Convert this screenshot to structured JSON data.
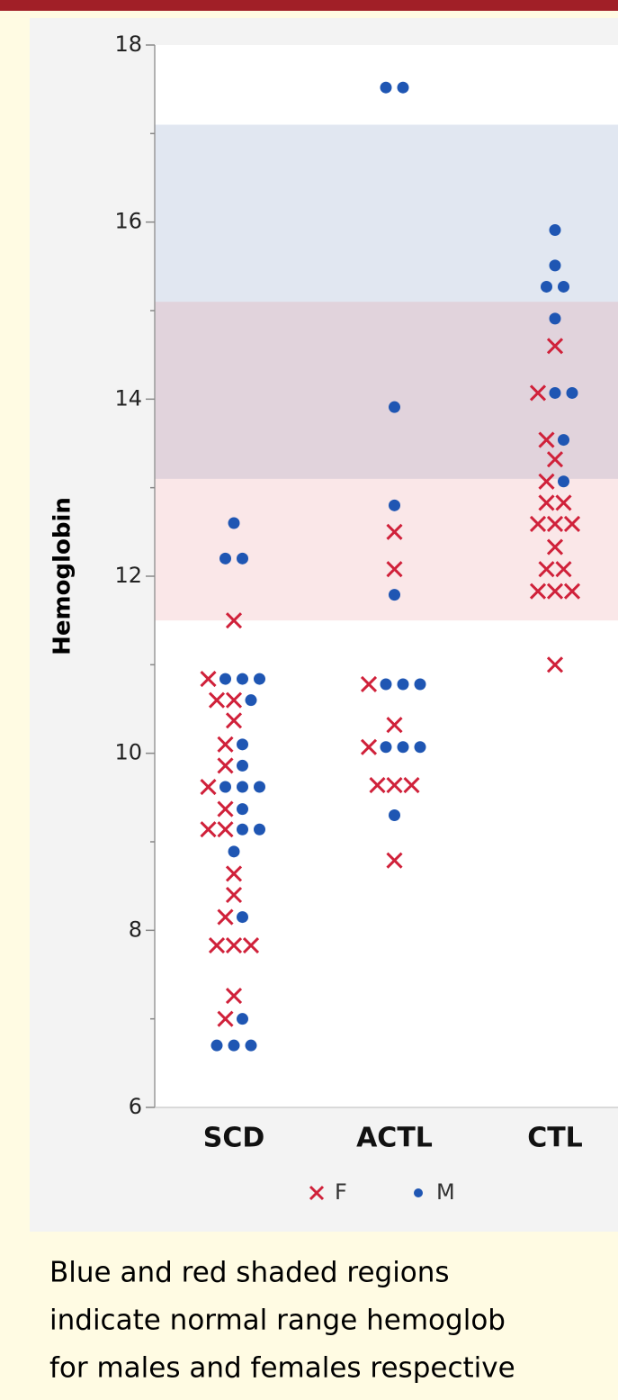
{
  "chart_data": {
    "type": "dotplot",
    "y_label": "Hemoglobin",
    "categories": [
      "SCD",
      "ACTL",
      "CTL"
    ],
    "ylim": [
      6,
      18
    ],
    "yticks": [
      6,
      8,
      10,
      12,
      14,
      16,
      18
    ],
    "yminorticks": [
      7,
      9,
      11,
      13,
      15,
      17
    ],
    "bands": [
      {
        "ylim": [
          13.1,
          17.1
        ],
        "color": "rgba(170,185,215,0.35)"
      },
      {
        "ylim": [
          11.5,
          15.1
        ],
        "color": "rgba(225,120,130,0.18)"
      }
    ],
    "series": [
      {
        "name": "F",
        "color": "#d0213a",
        "marker": "x",
        "x": [
          "SCD",
          "SCD",
          "SCD",
          "SCD",
          "SCD",
          "SCD",
          "SCD",
          "SCD",
          "SCD",
          "SCD",
          "SCD",
          "SCD",
          "SCD",
          "SCD",
          "SCD",
          "SCD",
          "SCD",
          "SCD",
          "SCD",
          "ACTL",
          "ACTL",
          "ACTL",
          "ACTL",
          "ACTL",
          "ACTL",
          "ACTL",
          "ACTL",
          "ACTL",
          "CTL",
          "CTL",
          "CTL",
          "CTL",
          "CTL",
          "CTL",
          "CTL",
          "CTL",
          "CTL",
          "CTL",
          "CTL",
          "CTL",
          "CTL",
          "CTL",
          "CTL",
          "CTL",
          "CTL"
        ],
        "values": [
          11.5,
          10.84,
          10.6,
          10.6,
          10.37,
          10.1,
          9.86,
          9.62,
          9.37,
          9.14,
          9.14,
          8.64,
          8.4,
          8.15,
          7.83,
          7.83,
          7.83,
          7.26,
          7.0,
          12.5,
          12.08,
          10.78,
          10.32,
          10.07,
          9.64,
          9.64,
          9.64,
          8.79,
          14.6,
          14.07,
          13.54,
          13.32,
          13.07,
          12.83,
          12.83,
          12.59,
          12.59,
          12.59,
          12.33,
          12.08,
          12.08,
          11.83,
          11.83,
          11.83,
          11.0
        ]
      },
      {
        "name": "M",
        "color": "#1f56b3",
        "marker": "dot",
        "x": [
          "SCD",
          "SCD",
          "SCD",
          "SCD",
          "SCD",
          "SCD",
          "SCD",
          "SCD",
          "SCD",
          "SCD",
          "SCD",
          "SCD",
          "SCD",
          "SCD",
          "SCD",
          "SCD",
          "SCD",
          "SCD",
          "SCD",
          "SCD",
          "SCD",
          "ACTL",
          "ACTL",
          "ACTL",
          "ACTL",
          "ACTL",
          "ACTL",
          "ACTL",
          "ACTL",
          "ACTL",
          "ACTL",
          "ACTL",
          "ACTL",
          "CTL",
          "CTL",
          "CTL",
          "CTL",
          "CTL",
          "CTL",
          "CTL",
          "CTL",
          "CTL"
        ],
        "values": [
          12.6,
          12.2,
          12.2,
          10.84,
          10.84,
          10.84,
          10.6,
          10.1,
          9.86,
          9.62,
          9.62,
          9.62,
          9.37,
          9.14,
          9.14,
          8.89,
          8.15,
          7.0,
          6.7,
          6.7,
          6.7,
          17.52,
          17.52,
          13.91,
          12.8,
          11.79,
          10.78,
          10.78,
          10.78,
          10.07,
          10.07,
          10.07,
          9.3,
          15.91,
          15.51,
          15.27,
          15.27,
          14.91,
          14.07,
          14.07,
          13.54,
          13.07
        ]
      }
    ]
  },
  "caption": [
    "Blue and red shaded regions",
    "indicate normal range hemoglob",
    "for males and females respective"
  ]
}
